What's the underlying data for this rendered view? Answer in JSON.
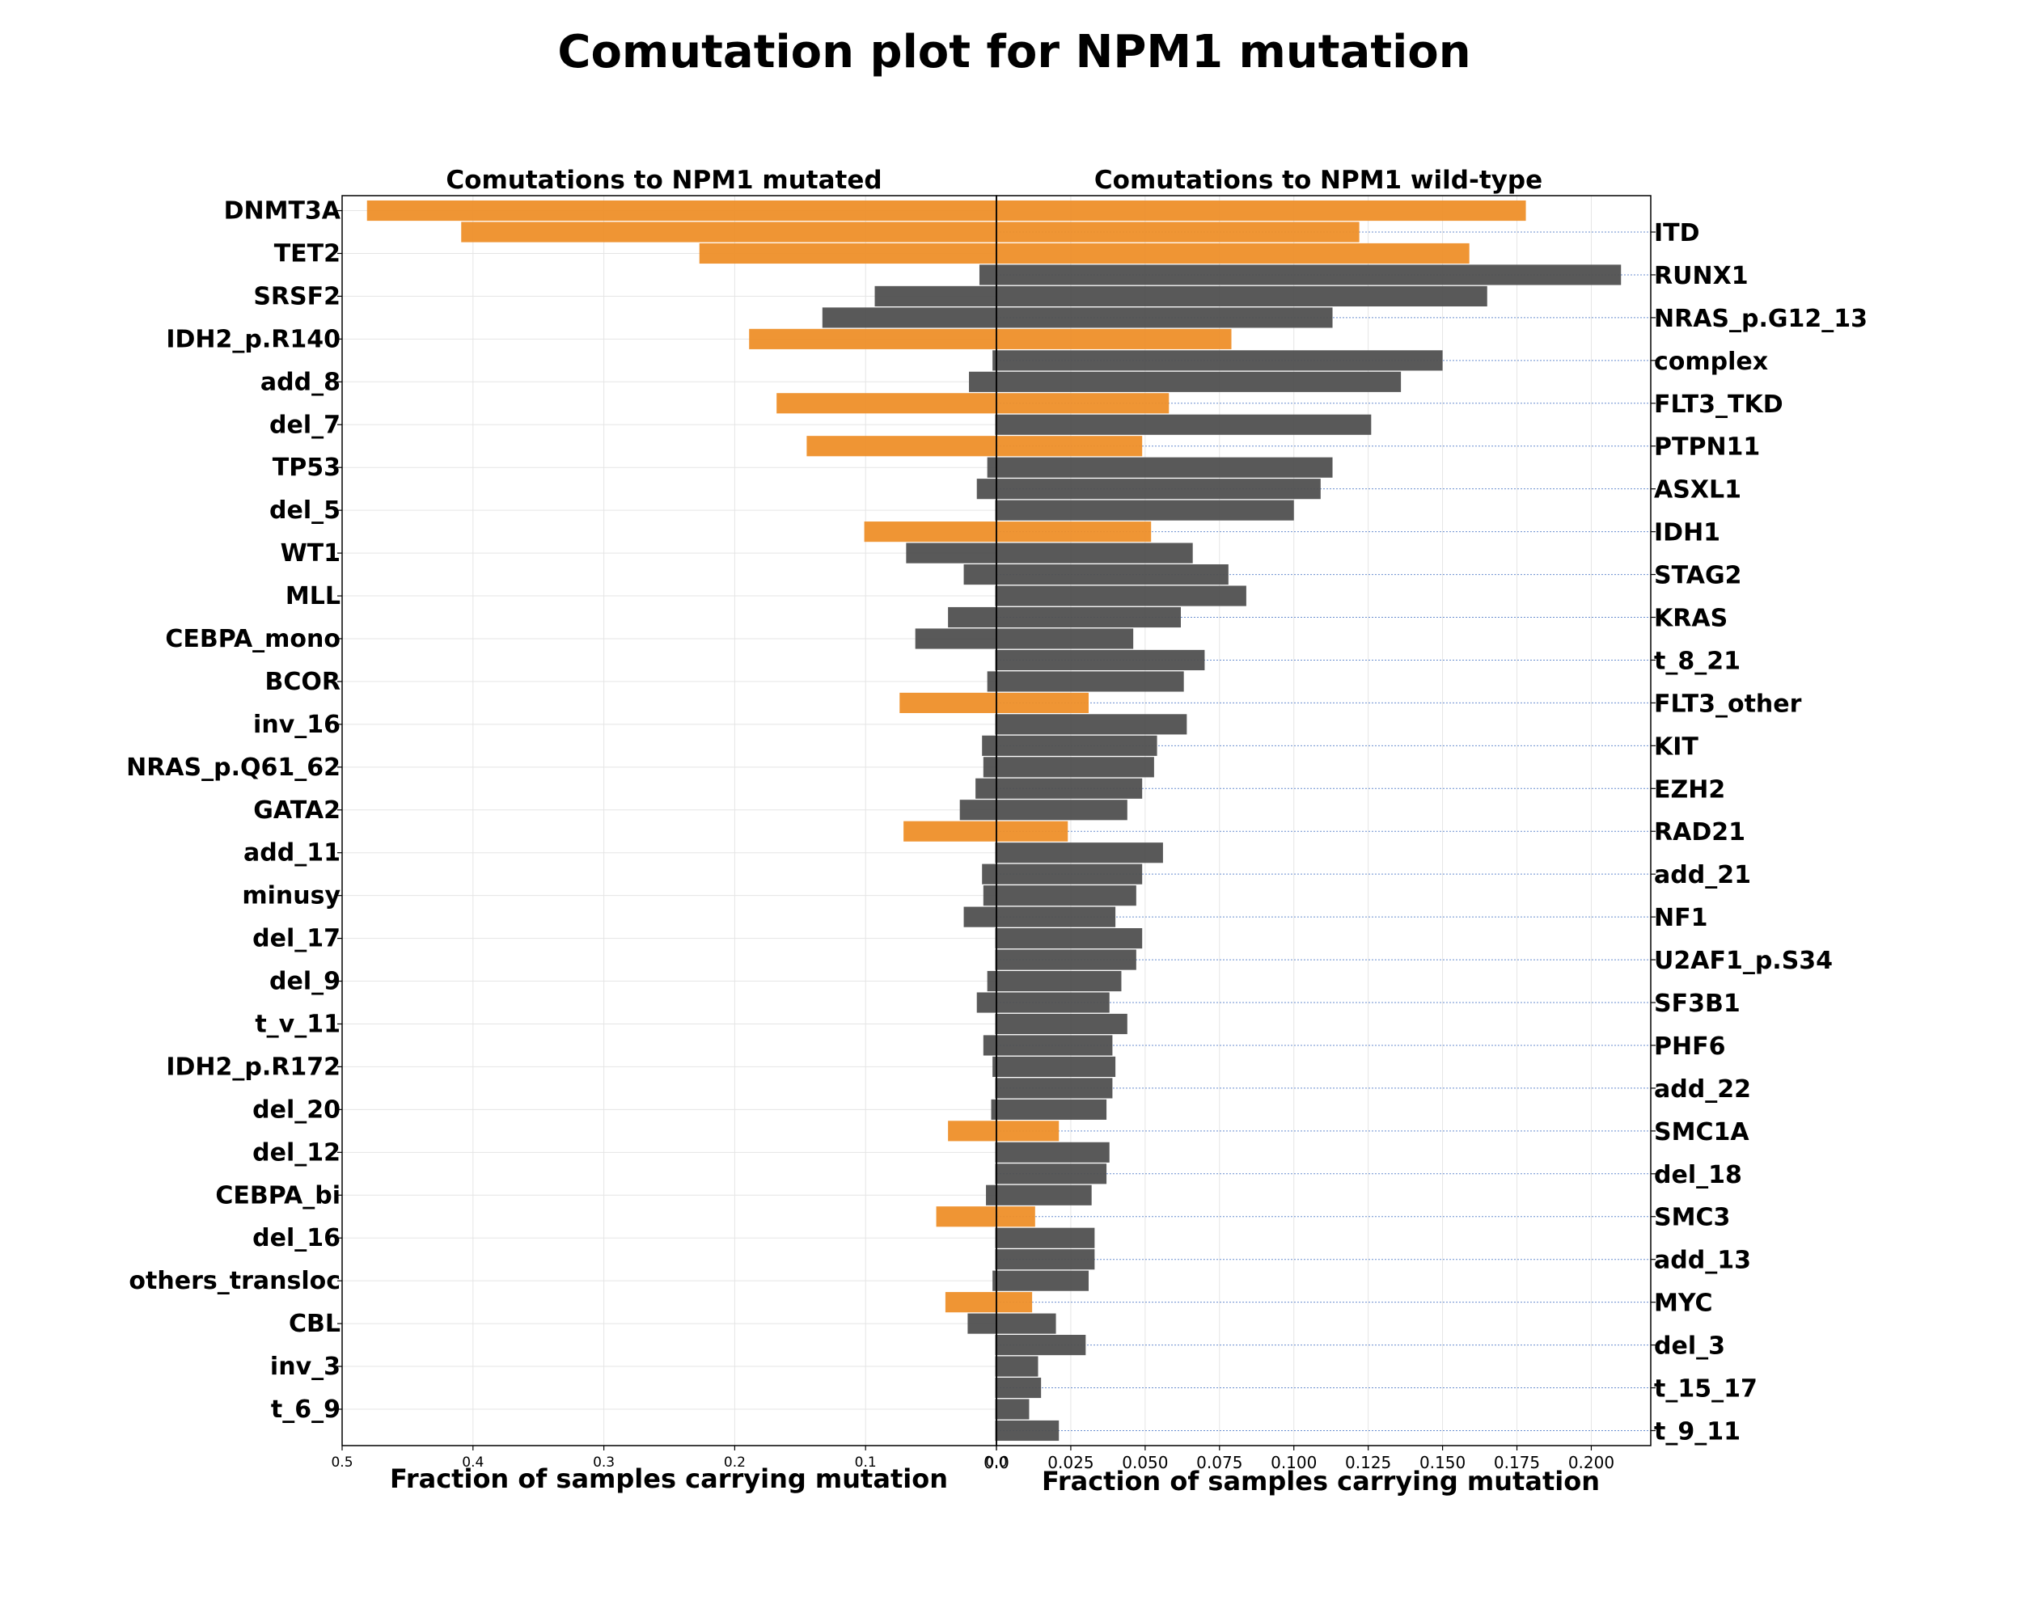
{
  "title": "Comutation plot for NPM1 mutation",
  "colors": {
    "highlight": "#ee8f29",
    "default": "#505050",
    "frame": "#000000",
    "grid": "#e5e5e5",
    "guide": "#4472c4"
  },
  "chart_data": {
    "type": "bar",
    "orientation": "horizontal",
    "grid": true,
    "categories": [
      "DNMT3A",
      "ITD",
      "TET2",
      "RUNX1",
      "SRSF2",
      "NRAS_p.G12_13",
      "IDH2_p.R140",
      "complex",
      "add_8",
      "FLT3_TKD",
      "del_7",
      "PTPN11",
      "TP53",
      "ASXL1",
      "del_5",
      "IDH1",
      "WT1",
      "STAG2",
      "MLL",
      "KRAS",
      "CEBPA_mono",
      "t_8_21",
      "BCOR",
      "FLT3_other",
      "inv_16",
      "KIT",
      "NRAS_p.Q61_62",
      "EZH2",
      "GATA2",
      "RAD21",
      "add_11",
      "add_21",
      "minusy",
      "NF1",
      "del_17",
      "U2AF1_p.S34",
      "del_9",
      "SF3B1",
      "t_v_11",
      "PHF6",
      "IDH2_p.R172",
      "add_22",
      "del_20",
      "SMC1A",
      "del_12",
      "del_18",
      "CEBPA_bi",
      "SMC3",
      "del_16",
      "add_13",
      "others_transloc",
      "MYC",
      "CBL",
      "del_3",
      "inv_3",
      "t_15_17",
      "t_6_9",
      "t_9_11"
    ],
    "highlight": [
      true,
      true,
      true,
      false,
      false,
      false,
      true,
      false,
      false,
      true,
      false,
      true,
      false,
      false,
      false,
      true,
      false,
      false,
      false,
      false,
      false,
      false,
      false,
      true,
      false,
      false,
      false,
      false,
      false,
      true,
      false,
      false,
      false,
      false,
      false,
      false,
      false,
      false,
      false,
      false,
      false,
      false,
      false,
      true,
      false,
      false,
      false,
      true,
      false,
      false,
      false,
      true,
      false,
      false,
      false,
      false,
      false,
      false
    ],
    "left_labels": [
      "DNMT3A",
      "TET2",
      "SRSF2",
      "IDH2_p.R140",
      "add_8",
      "del_7",
      "TP53",
      "del_5",
      "WT1",
      "MLL",
      "CEBPA_mono",
      "BCOR",
      "inv_16",
      "NRAS_p.Q61_62",
      "GATA2",
      "add_11",
      "minusy",
      "del_17",
      "del_9",
      "t_v_11",
      "IDH2_p.R172",
      "del_20",
      "del_12",
      "CEBPA_bi",
      "del_16",
      "others_transloc",
      "CBL",
      "inv_3",
      "t_6_9"
    ],
    "right_labels": [
      "ITD",
      "RUNX1",
      "NRAS_p.G12_13",
      "complex",
      "FLT3_TKD",
      "PTPN11",
      "ASXL1",
      "IDH1",
      "STAG2",
      "KRAS",
      "t_8_21",
      "FLT3_other",
      "KIT",
      "EZH2",
      "RAD21",
      "add_21",
      "NF1",
      "U2AF1_p.S34",
      "SF3B1",
      "PHF6",
      "add_22",
      "SMC1A",
      "del_18",
      "SMC3",
      "add_13",
      "MYC",
      "del_3",
      "t_15_17",
      "t_9_11"
    ],
    "panels": [
      {
        "subtitle": "Comutations to NPM1 mutated",
        "xlabel": "Fraction of samples carrying mutation",
        "xlim": [
          0.5,
          0.0
        ],
        "xticks": [
          0.5,
          0.4,
          0.3,
          0.2,
          0.1,
          0.0
        ],
        "xtick_labels": [
          "0.5",
          "0.4",
          "0.3",
          "0.2",
          "0.1",
          "0.0"
        ],
        "values": [
          0.481,
          0.409,
          0.227,
          0.013,
          0.093,
          0.133,
          0.189,
          0.003,
          0.021,
          0.168,
          0.0,
          0.145,
          0.007,
          0.015,
          0.0,
          0.101,
          0.069,
          0.025,
          0.0,
          0.037,
          0.062,
          0.0,
          0.007,
          0.074,
          0.0,
          0.011,
          0.01,
          0.016,
          0.028,
          0.071,
          0.0,
          0.011,
          0.01,
          0.025,
          0.0,
          0.0,
          0.007,
          0.015,
          0.0,
          0.01,
          0.003,
          0.0,
          0.004,
          0.037,
          0.0,
          0.0,
          0.008,
          0.046,
          0.0,
          0.0,
          0.003,
          0.039,
          0.022,
          0.0,
          0.0,
          0.0,
          0.0,
          0.0
        ]
      },
      {
        "subtitle": "Comutations to NPM1 wild-type",
        "xlabel": "Fraction of samples carrying mutation",
        "xlim": [
          0.0,
          0.22
        ],
        "xticks": [
          0.0,
          0.025,
          0.05,
          0.075,
          0.1,
          0.125,
          0.15,
          0.175,
          0.2
        ],
        "xtick_labels": [
          "0.0",
          "0.025",
          "0.050",
          "0.075",
          "0.100",
          "0.125",
          "0.150",
          "0.175",
          "0.200"
        ],
        "values": [
          0.178,
          0.122,
          0.159,
          0.21,
          0.165,
          0.113,
          0.079,
          0.15,
          0.136,
          0.058,
          0.126,
          0.049,
          0.113,
          0.109,
          0.1,
          0.052,
          0.066,
          0.078,
          0.084,
          0.062,
          0.046,
          0.07,
          0.063,
          0.031,
          0.064,
          0.054,
          0.053,
          0.049,
          0.044,
          0.024,
          0.056,
          0.049,
          0.047,
          0.04,
          0.049,
          0.047,
          0.042,
          0.038,
          0.044,
          0.039,
          0.04,
          0.039,
          0.037,
          0.021,
          0.038,
          0.037,
          0.032,
          0.013,
          0.033,
          0.033,
          0.031,
          0.012,
          0.02,
          0.03,
          0.014,
          0.015,
          0.011,
          0.021
        ]
      }
    ]
  }
}
